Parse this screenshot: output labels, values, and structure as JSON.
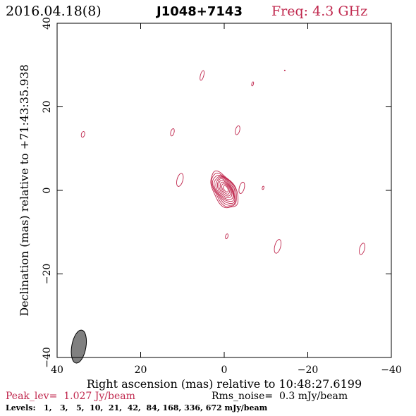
{
  "header": {
    "date": "2016.04.18(8)",
    "source": "J1048+7143",
    "frequency": "Freq: 4.3 GHz"
  },
  "footer": {
    "peak_level": "Peak_lev=  1.027 Jy/beam",
    "rms_noise": "Rms_noise=  0.3 mJy/beam",
    "levels": "Levels:   1,   3,   5,  10,  21,  42,  84, 168, 336, 672 mJy/beam"
  },
  "colors": {
    "contour": "#c0284e",
    "frame": "#000000",
    "beam_fill": "#808080"
  },
  "chart_data": {
    "type": "contour",
    "xlabel": "Right ascension (mas) relative to 10:48:27.6199",
    "ylabel": "Declination (mas) relative to +71:43:35.938",
    "xlim": [
      40,
      -40
    ],
    "ylim": [
      -40,
      40
    ],
    "x_ticks": [
      40,
      20,
      0,
      -20,
      -40
    ],
    "y_ticks": [
      -40,
      -20,
      0,
      20,
      40
    ],
    "x_tick_labels": [
      "40",
      "20",
      "0",
      "−20",
      "−40"
    ],
    "y_tick_labels": [
      "−40",
      "−20",
      "0",
      "20",
      "40"
    ],
    "contour_levels_mjy": [
      1,
      3,
      5,
      10,
      21,
      42,
      84,
      168,
      336,
      672
    ],
    "core": {
      "ra": 0,
      "dec": 0,
      "position_angle_deg": -30,
      "levels_drawn": 10
    },
    "features": [
      {
        "ra": 5.3,
        "dec": 27.5,
        "rx": 0.4,
        "ry": 1.2
      },
      {
        "ra": -6.8,
        "dec": 25.5,
        "rx": 0.2,
        "ry": 0.5
      },
      {
        "ra": -14.5,
        "dec": 28.7,
        "rx": 0.1,
        "ry": 0.1
      },
      {
        "ra": 33.8,
        "dec": 13.4,
        "rx": 0.4,
        "ry": 0.7
      },
      {
        "ra": 12.4,
        "dec": 13.9,
        "rx": 0.4,
        "ry": 0.9
      },
      {
        "ra": -3.2,
        "dec": 14.4,
        "rx": 0.5,
        "ry": 1.1
      },
      {
        "ra": 10.6,
        "dec": 2.5,
        "rx": 0.7,
        "ry": 1.6
      },
      {
        "ra": -4.2,
        "dec": 0.6,
        "rx": 0.6,
        "ry": 1.4
      },
      {
        "ra": -9.3,
        "dec": 0.6,
        "rx": 0.2,
        "ry": 0.4
      },
      {
        "ra": -0.6,
        "dec": -11.0,
        "rx": 0.3,
        "ry": 0.6
      },
      {
        "ra": -12.8,
        "dec": -13.4,
        "rx": 0.7,
        "ry": 1.7
      },
      {
        "ra": -33.0,
        "dec": -14.0,
        "rx": 0.6,
        "ry": 1.4
      }
    ],
    "beam": {
      "ra": 34.8,
      "dec": -37.4,
      "major_mas": 4.0,
      "minor_mas": 1.7,
      "position_angle_deg": 10
    }
  }
}
